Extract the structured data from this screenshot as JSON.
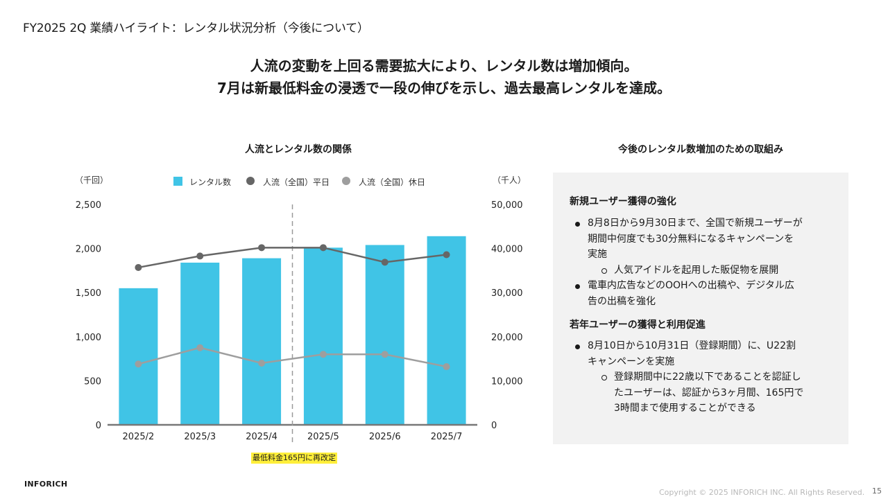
{
  "slide": {
    "title": "FY2025 2Q 業績ハイライト：レンタル状況分析（今後について）",
    "headline_1": "人流の変動を上回る需要拡大により、レンタル数は増加傾向。",
    "headline_2": "7月は新最低料金の浸透で一段の伸びを示し、過去最高レンタルを達成。",
    "logo": "INFORICH",
    "copyright": "Copyright © 2025 INFORICH INC. All Rights Reserved.",
    "page_number": "15"
  },
  "chart_data": {
    "type": "bar",
    "title": "人流とレンタル数の関係",
    "categories": [
      "2025/2",
      "2025/3",
      "2025/4",
      "2025/5",
      "2025/6",
      "2025/7"
    ],
    "left_axis": {
      "unit_label": "（千回）",
      "ylim": [
        0,
        2500
      ],
      "ticks": [
        0,
        500,
        1000,
        1500,
        2000,
        2500
      ],
      "tick_labels": [
        "0",
        "500",
        "1,000",
        "1,500",
        "2,000",
        "2,500"
      ]
    },
    "right_axis": {
      "unit_label": "（千人）",
      "ylim": [
        0,
        50000
      ],
      "ticks": [
        0,
        10000,
        20000,
        30000,
        40000,
        50000
      ],
      "tick_labels": [
        "0",
        "10,000",
        "20,000",
        "30,000",
        "40,000",
        "50,000"
      ]
    },
    "series": [
      {
        "name": "レンタル数",
        "kind": "bar",
        "axis": "left",
        "color": "#40c4e6",
        "values": [
          1550,
          1840,
          1890,
          2010,
          2040,
          2140
        ]
      },
      {
        "name": "人流（全国）平日",
        "kind": "line",
        "axis": "right",
        "color": "#666666",
        "values": [
          35700,
          38300,
          40200,
          40200,
          36900,
          38600
        ]
      },
      {
        "name": "人流（全国）休日",
        "kind": "line",
        "axis": "right",
        "color": "#9e9e9e",
        "values": [
          13800,
          17500,
          14000,
          16000,
          16000,
          13200
        ]
      }
    ],
    "divider_after_category": "2025/4",
    "annotation": "最低料金165円に再改定",
    "legend": "top",
    "grid": false
  },
  "panel": {
    "heading": "今後のレンタル数増加のための取組み",
    "section1": {
      "title": "新規ユーザー獲得の強化",
      "bullet1_lines": [
        "8月8日から9月30日まで、全国で新規ユーザーが",
        "期間中何度でも30分無料になるキャンペーンを",
        "実施"
      ],
      "bullet1_sub": "人気アイドルを起用した販促物を展開",
      "bullet2_lines": [
        "電車内広告などのOOHへの出稿や、デジタル広",
        "告の出稿を強化"
      ]
    },
    "section2": {
      "title": "若年ユーザーの獲得と利用促進",
      "bullet1_lines": [
        "8月10日から10月31日（登録期間）に、U22割",
        "キャンペーンを実施"
      ],
      "bullet1_sub_lines": [
        "登録期間中に22歳以下であることを認証し",
        "たユーザーは、認証から3ヶ月間、165円で",
        "3時間まで使用することができる"
      ]
    }
  }
}
